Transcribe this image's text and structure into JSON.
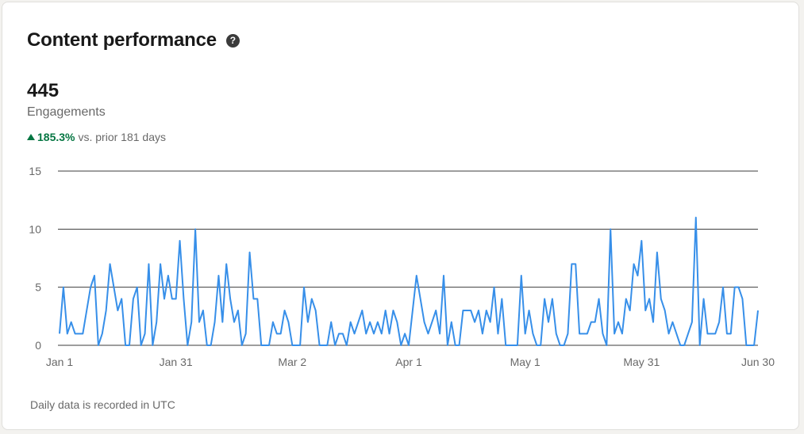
{
  "card": {
    "title": "Content performance",
    "help_icon": "question-circle-icon",
    "metric_value": "445",
    "metric_label": "Engagements",
    "trend_percent": "185.3%",
    "trend_text": "vs. prior 181 days",
    "trend_color": "#057642",
    "footnote": "Daily data is recorded in UTC"
  },
  "chart_data": {
    "type": "line",
    "ylim": [
      0,
      15
    ],
    "yticks": [
      0,
      5,
      10,
      15
    ],
    "xticks": [
      "Jan 1",
      "Jan 31",
      "Mar 2",
      "Apr 1",
      "May 1",
      "May 31",
      "Jun 30"
    ],
    "xtick_index": [
      0,
      30,
      60,
      90,
      120,
      150,
      180
    ],
    "grid": true,
    "line_color": "#378fe9",
    "series": [
      {
        "values": [
          1,
          5,
          1,
          2,
          1,
          1,
          1,
          3,
          5,
          6,
          0,
          1,
          3,
          7,
          5,
          3,
          4,
          0,
          0,
          4,
          5,
          0,
          1,
          7,
          0,
          2,
          7,
          4,
          6,
          4,
          4,
          9,
          4,
          0,
          2,
          10,
          2,
          3,
          0,
          0,
          2,
          6,
          2,
          7,
          4,
          2,
          3,
          0,
          1,
          8,
          4,
          4,
          0,
          0,
          0,
          2,
          1,
          1,
          3,
          2,
          0,
          0,
          0,
          5,
          2,
          4,
          3,
          0,
          0,
          0,
          2,
          0,
          1,
          1,
          0,
          2,
          1,
          2,
          3,
          1,
          2,
          1,
          2,
          1,
          3,
          1,
          3,
          2,
          0,
          1,
          0,
          3,
          6,
          4,
          2,
          1,
          2,
          3,
          1,
          6,
          0,
          2,
          0,
          0,
          3,
          3,
          3,
          2,
          3,
          1,
          3,
          2,
          5,
          1,
          4,
          0,
          0,
          0,
          0,
          6,
          1,
          3,
          1,
          0,
          0,
          4,
          2,
          4,
          1,
          0,
          0,
          1,
          7,
          7,
          1,
          1,
          1,
          2,
          2,
          4,
          1,
          0,
          10,
          1,
          2,
          1,
          4,
          3,
          7,
          6,
          9,
          3,
          4,
          2,
          8,
          4,
          3,
          1,
          2,
          1,
          0,
          0,
          1,
          2,
          11,
          0,
          4,
          1,
          1,
          1,
          2,
          5,
          1,
          1,
          5,
          5,
          4,
          0,
          0,
          0,
          3
        ]
      }
    ]
  }
}
